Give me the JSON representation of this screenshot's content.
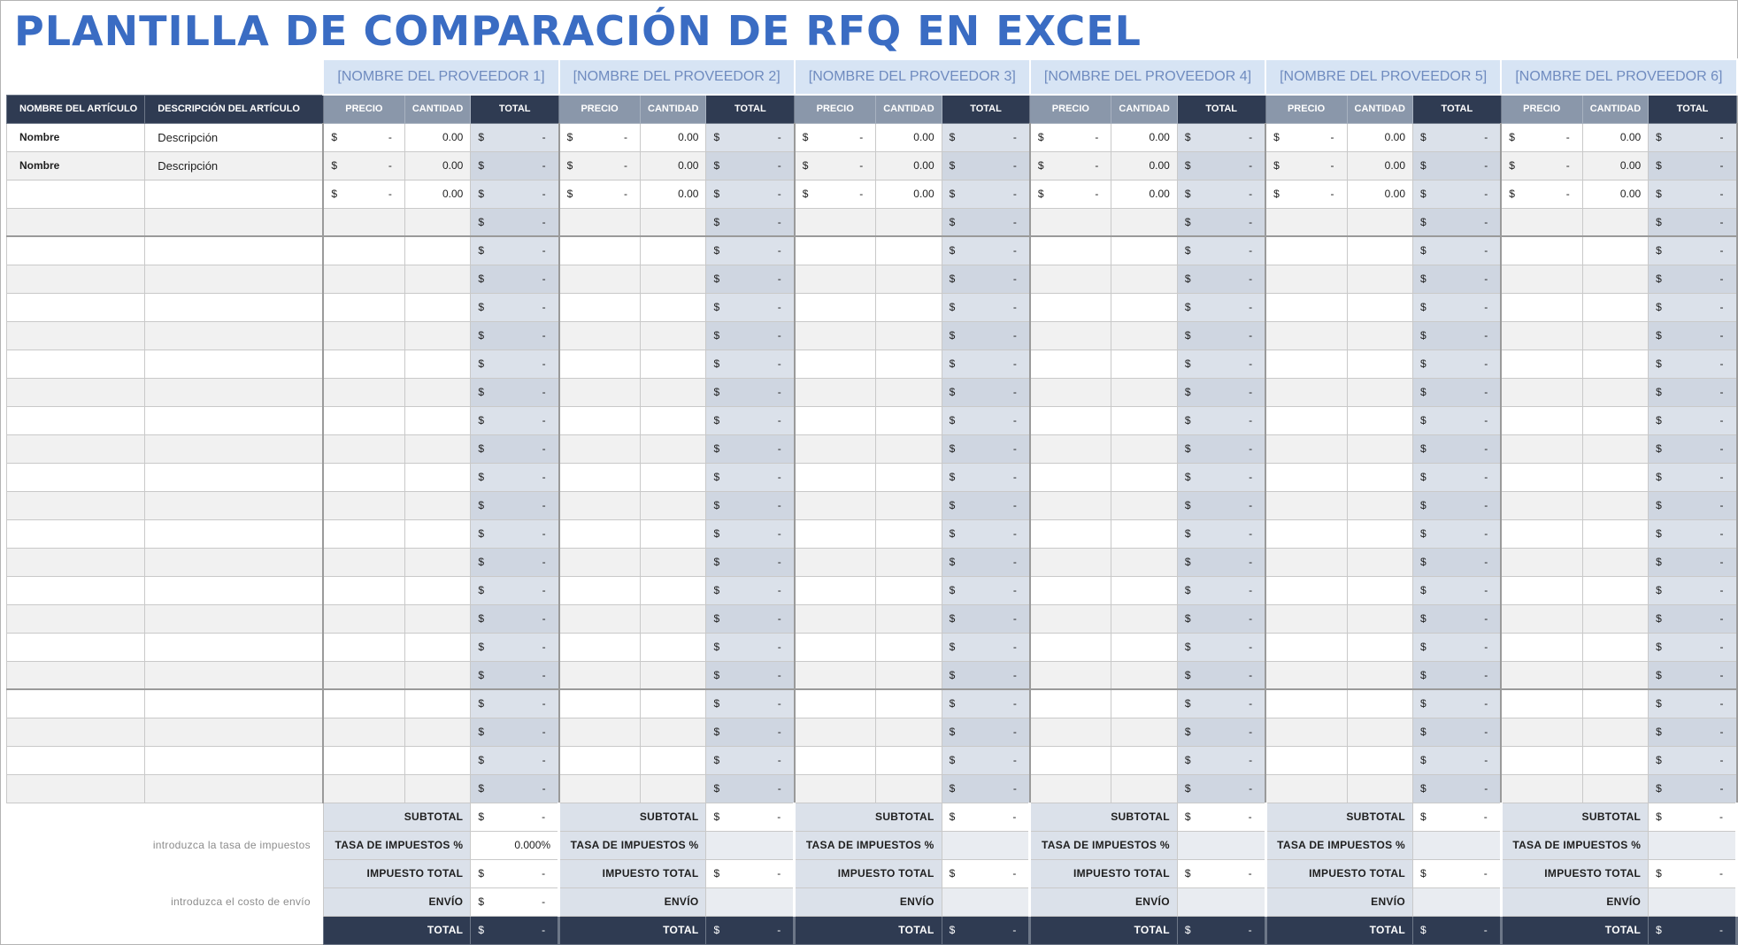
{
  "title": "PLANTILLA DE COMPARACIÓN DE RFQ EN EXCEL",
  "vendors": [
    "[NOMBRE DEL PROVEEDOR 1]",
    "[NOMBRE DEL PROVEEDOR 2]",
    "[NOMBRE DEL PROVEEDOR 3]",
    "[NOMBRE DEL PROVEEDOR 4]",
    "[NOMBRE DEL PROVEEDOR 5]",
    "[NOMBRE DEL PROVEEDOR 6]"
  ],
  "headers": {
    "item_name": "NOMBRE DEL ARTÍCULO",
    "item_desc": "DESCRIPCIÓN DEL ARTÍCULO",
    "price": "PRECIO",
    "qty": "CANTIDAD",
    "total": "TOTAL"
  },
  "currency": "$",
  "dash": "-",
  "rows": [
    {
      "name": "Nombre",
      "desc": "Descripción",
      "price": "-",
      "qty": "0.00",
      "total": "-"
    },
    {
      "name": "Nombre",
      "desc": "Descripción",
      "price": "-",
      "qty": "0.00",
      "total": "-"
    },
    {
      "name": "",
      "desc": "",
      "price": "-",
      "qty": "0.00",
      "total": "-"
    },
    {
      "name": "",
      "desc": "",
      "price": "",
      "qty": "",
      "total": "-"
    },
    {
      "name": "",
      "desc": "",
      "price": "",
      "qty": "",
      "total": "-"
    },
    {
      "name": "",
      "desc": "",
      "price": "",
      "qty": "",
      "total": "-"
    },
    {
      "name": "",
      "desc": "",
      "price": "",
      "qty": "",
      "total": "-"
    },
    {
      "name": "",
      "desc": "",
      "price": "",
      "qty": "",
      "total": "-"
    },
    {
      "name": "",
      "desc": "",
      "price": "",
      "qty": "",
      "total": "-"
    },
    {
      "name": "",
      "desc": "",
      "price": "",
      "qty": "",
      "total": "-"
    },
    {
      "name": "",
      "desc": "",
      "price": "",
      "qty": "",
      "total": "-"
    },
    {
      "name": "",
      "desc": "",
      "price": "",
      "qty": "",
      "total": "-"
    },
    {
      "name": "",
      "desc": "",
      "price": "",
      "qty": "",
      "total": "-"
    },
    {
      "name": "",
      "desc": "",
      "price": "",
      "qty": "",
      "total": "-"
    },
    {
      "name": "",
      "desc": "",
      "price": "",
      "qty": "",
      "total": "-"
    },
    {
      "name": "",
      "desc": "",
      "price": "",
      "qty": "",
      "total": "-"
    },
    {
      "name": "",
      "desc": "",
      "price": "",
      "qty": "",
      "total": "-"
    },
    {
      "name": "",
      "desc": "",
      "price": "",
      "qty": "",
      "total": "-"
    },
    {
      "name": "",
      "desc": "",
      "price": "",
      "qty": "",
      "total": "-"
    },
    {
      "name": "",
      "desc": "",
      "price": "",
      "qty": "",
      "total": "-"
    },
    {
      "name": "",
      "desc": "",
      "price": "",
      "qty": "",
      "total": "-"
    },
    {
      "name": "",
      "desc": "",
      "price": "",
      "qty": "",
      "total": "-"
    },
    {
      "name": "",
      "desc": "",
      "price": "",
      "qty": "",
      "total": "-"
    },
    {
      "name": "",
      "desc": "",
      "price": "",
      "qty": "",
      "total": "-"
    }
  ],
  "summary": {
    "subtotal": "SUBTOTAL",
    "tax_rate": "TASA DE IMPUESTOS %",
    "tax_total": "IMPUESTO TOTAL",
    "shipping": "ENVÍO",
    "total": "TOTAL",
    "hint_tax": "introduzca la tasa de impuestos",
    "hint_shipping": "introduzca el costo de envío",
    "tax_rate_value": "0.000%"
  },
  "colors": {
    "title": "#3a6cc3",
    "header_dark": "#2f3b52",
    "header_mid": "#8a97aa",
    "vendor_bg": "#d7e4f4",
    "total_col_bg": "#dbe1ea"
  }
}
